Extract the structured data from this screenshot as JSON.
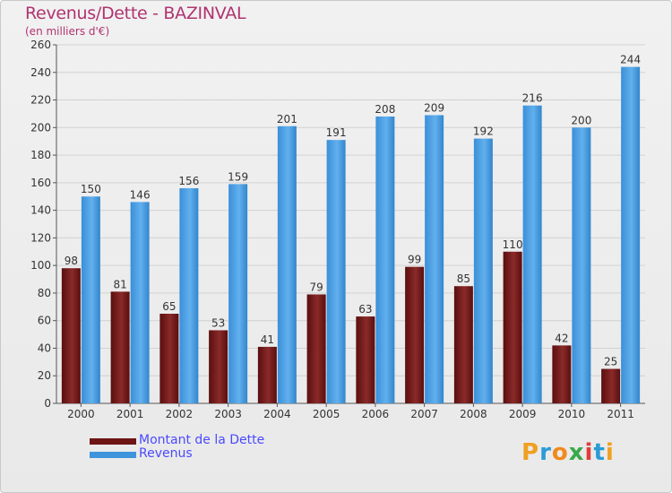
{
  "title": "Revenus/Dette - BAZINVAL",
  "subtitle": "(en milliers d'€)",
  "logo": {
    "text": "Proxiti",
    "letters": [
      {
        "ch": "P",
        "color": "#f0a020"
      },
      {
        "ch": "r",
        "color": "#2a9bd6"
      },
      {
        "ch": "o",
        "color": "#f08a1c"
      },
      {
        "ch": "x",
        "color": "#3aa84a"
      },
      {
        "ch": "i",
        "color": "#e23b3b"
      },
      {
        "ch": "t",
        "color": "#2a9bd6"
      },
      {
        "ch": "i",
        "color": "#f0a020"
      }
    ]
  },
  "chart_data": {
    "type": "bar",
    "categories": [
      "2000",
      "2001",
      "2002",
      "2003",
      "2004",
      "2005",
      "2006",
      "2007",
      "2008",
      "2009",
      "2010",
      "2011"
    ],
    "series": [
      {
        "name": "Montant de la Dette",
        "color": "#6e1414",
        "values": [
          98,
          81,
          65,
          53,
          41,
          79,
          63,
          99,
          85,
          110,
          42,
          25
        ]
      },
      {
        "name": "Revenus",
        "color": "#3d94dc",
        "values": [
          150,
          146,
          156,
          159,
          201,
          191,
          208,
          209,
          192,
          216,
          200,
          244
        ]
      }
    ],
    "ylim": [
      0,
      260
    ],
    "yticks": [
      0,
      20,
      40,
      60,
      80,
      100,
      120,
      140,
      160,
      180,
      200,
      220,
      240,
      260
    ],
    "grid": true,
    "legend_position": "bottom-left"
  }
}
